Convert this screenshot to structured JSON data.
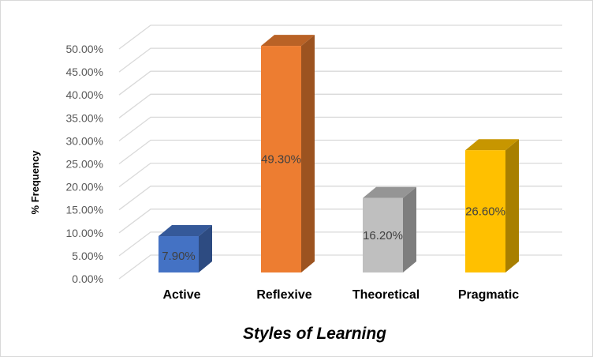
{
  "chart_data": {
    "type": "bar",
    "style": "3d-column",
    "categories": [
      "Active",
      "Reflexive",
      "Theoretical",
      "Pragmatic"
    ],
    "values": [
      7.9,
      49.3,
      16.2,
      26.6
    ],
    "data_labels": [
      "7.90%",
      "49.30%",
      "16.20%",
      "26.60%"
    ],
    "colors": [
      "#4472C4",
      "#ED7D31",
      "#BFBFBF",
      "#FFC000"
    ],
    "title": "",
    "xlabel": "Styles of Learning",
    "ylabel": "% Frequency",
    "ylim": [
      0,
      50
    ],
    "yticks": [
      "0.00%",
      "5.00%",
      "10.00%",
      "15.00%",
      "20.00%",
      "25.00%",
      "30.00%",
      "35.00%",
      "40.00%",
      "45.00%",
      "50.00%"
    ],
    "grid": true,
    "legend": "none"
  }
}
